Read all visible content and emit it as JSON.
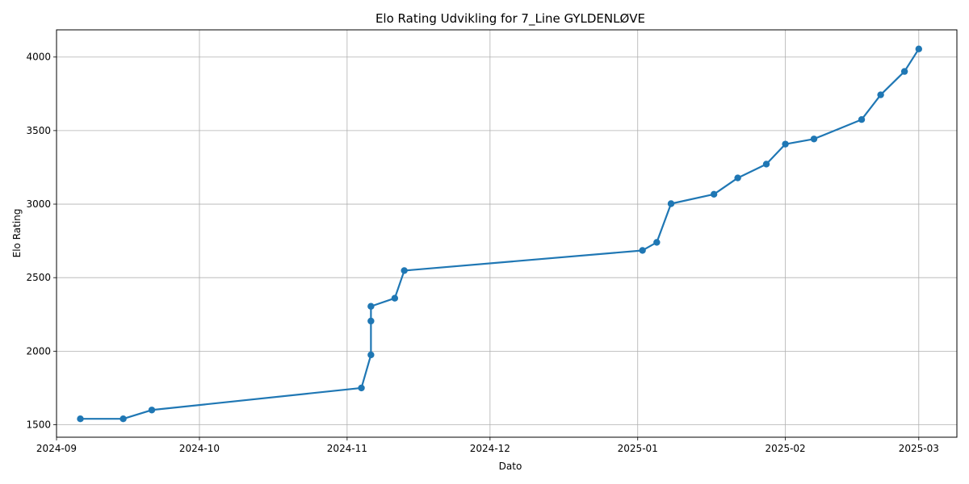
{
  "chart_data": {
    "type": "line",
    "title": "Elo Rating Udvikling for 7_Line GYLDENLØVE",
    "xlabel": "Dato",
    "ylabel": "Elo Rating",
    "grid": true,
    "x_axis": "date",
    "xlim": [
      "2024-09-01",
      "2025-03-09"
    ],
    "ylim": [
      1415,
      4185
    ],
    "x_ticks": [
      "2024-09",
      "2024-10",
      "2024-11",
      "2024-12",
      "2025-01",
      "2025-02",
      "2025-03"
    ],
    "y_ticks": [
      1500,
      2000,
      2500,
      3000,
      3500,
      4000
    ],
    "series": [
      {
        "color": "#1f77b4",
        "points": [
          {
            "x": "2024-09-06",
            "y": 1540
          },
          {
            "x": "2024-09-15",
            "y": 1540
          },
          {
            "x": "2024-09-21",
            "y": 1600
          },
          {
            "x": "2024-11-04",
            "y": 1750
          },
          {
            "x": "2024-11-06",
            "y": 1975
          },
          {
            "x": "2024-11-06",
            "y": 2205
          },
          {
            "x": "2024-11-06",
            "y": 2305
          },
          {
            "x": "2024-11-11",
            "y": 2360
          },
          {
            "x": "2024-11-13",
            "y": 2548
          },
          {
            "x": "2025-01-02",
            "y": 2685
          },
          {
            "x": "2025-01-05",
            "y": 2740
          },
          {
            "x": "2025-01-08",
            "y": 3003
          },
          {
            "x": "2025-01-17",
            "y": 3067
          },
          {
            "x": "2025-01-22",
            "y": 3178
          },
          {
            "x": "2025-01-28",
            "y": 3272
          },
          {
            "x": "2025-02-01",
            "y": 3408
          },
          {
            "x": "2025-02-07",
            "y": 3443
          },
          {
            "x": "2025-02-17",
            "y": 3575
          },
          {
            "x": "2025-02-21",
            "y": 3743
          },
          {
            "x": "2025-02-26",
            "y": 3902
          },
          {
            "x": "2025-03-01",
            "y": 4055
          }
        ]
      }
    ]
  }
}
